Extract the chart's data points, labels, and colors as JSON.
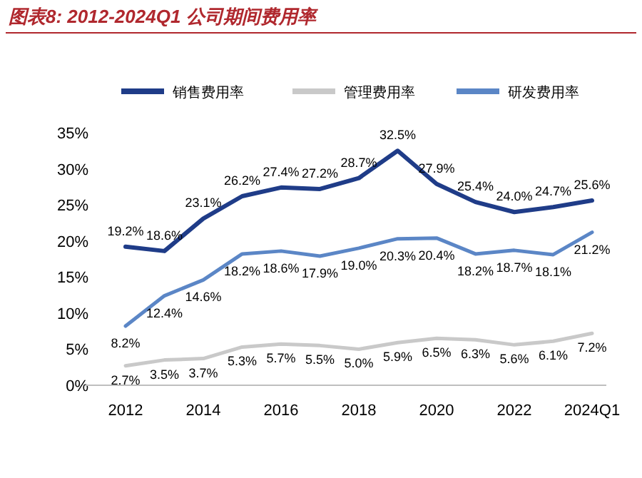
{
  "chart_data": {
    "type": "line",
    "title": "图表8:  2012-2024Q1 公司期间费用率",
    "categories": [
      "2012",
      null,
      "2014",
      null,
      "2016",
      null,
      "2018",
      null,
      "2020",
      null,
      "2022",
      null,
      "2024Q1"
    ],
    "series": [
      {
        "name": "销售费用率",
        "color": "#1f3c88",
        "values": [
          19.2,
          18.6,
          23.1,
          26.2,
          27.4,
          27.2,
          28.7,
          32.5,
          27.9,
          25.4,
          24.0,
          24.7,
          25.6
        ],
        "value_labels": [
          "19.2%",
          "18.6%",
          "23.1%",
          "26.2%",
          "27.4%",
          "27.2%",
          "28.7%",
          "32.5%",
          "27.9%",
          "25.4%",
          "24.0%",
          "24.7%",
          "25.6%"
        ]
      },
      {
        "name": "管理费用率",
        "color": "#c9c9c9",
        "values": [
          2.7,
          3.5,
          3.7,
          5.3,
          5.7,
          5.5,
          5.0,
          5.9,
          6.5,
          6.3,
          5.6,
          6.1,
          7.2
        ],
        "value_labels": [
          "2.7%",
          "3.5%",
          "3.7%",
          "5.3%",
          "5.7%",
          "5.5%",
          "5.0%",
          "5.9%",
          "6.5%",
          "6.3%",
          "5.6%",
          "6.1%",
          "7.2%"
        ]
      },
      {
        "name": "研发费用率",
        "color": "#5b86c6",
        "values": [
          8.2,
          12.4,
          14.6,
          18.2,
          18.6,
          17.9,
          19.0,
          20.3,
          20.4,
          18.2,
          18.7,
          18.1,
          21.2
        ],
        "value_labels": [
          "8.2%",
          "12.4%",
          "14.6%",
          "18.2%",
          "18.6%",
          "17.9%",
          "19.0%",
          "20.3%",
          "20.4%",
          "18.2%",
          "18.7%",
          "18.1%",
          "21.2%"
        ]
      }
    ],
    "ylim": [
      0,
      35
    ],
    "yticks": [
      {
        "value": 0,
        "label": "0%"
      },
      {
        "value": 5,
        "label": "5%"
      },
      {
        "value": 10,
        "label": "10%"
      },
      {
        "value": 15,
        "label": "15%"
      },
      {
        "value": 20,
        "label": "20%"
      },
      {
        "value": 25,
        "label": "25%"
      },
      {
        "value": 30,
        "label": "30%"
      },
      {
        "value": 35,
        "label": "35%"
      }
    ],
    "legend": "top",
    "grid": false,
    "marker": "none",
    "line_style": "solid"
  }
}
